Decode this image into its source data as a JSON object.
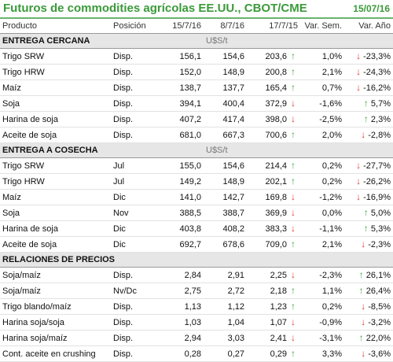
{
  "header": {
    "title": "Futuros de commodities agrícolas EE.UU., CBOT/CME",
    "date": "15/07/16"
  },
  "columns": [
    "Producto",
    "Posición",
    "15/7/16",
    "8/7/16",
    "17/7/15",
    "Var. Sem.",
    "Var. Año"
  ],
  "colors": {
    "title_green": "#3a9a3a",
    "arrow_up": "#3ea43e",
    "arrow_down": "#e0352b",
    "section_bg": "#e6e6e6"
  },
  "sections": [
    {
      "title": "ENTREGA CERCANA",
      "unit": "U$S/t",
      "rows": [
        {
          "product": "Trigo SRW",
          "position": "Disp.",
          "v1": "156,1",
          "v2": "154,6",
          "v3": "203,6",
          "a1": "up",
          "sem": "1,0%",
          "a2": "down",
          "ano": "-23,3%"
        },
        {
          "product": "Trigo HRW",
          "position": "Disp.",
          "v1": "152,0",
          "v2": "148,9",
          "v3": "200,8",
          "a1": "up",
          "sem": "2,1%",
          "a2": "down",
          "ano": "-24,3%"
        },
        {
          "product": "Maíz",
          "position": "Disp.",
          "v1": "138,7",
          "v2": "137,7",
          "v3": "165,4",
          "a1": "up",
          "sem": "0,7%",
          "a2": "down",
          "ano": "-16,2%"
        },
        {
          "product": "Soja",
          "position": "Disp.",
          "v1": "394,1",
          "v2": "400,4",
          "v3": "372,9",
          "a1": "down",
          "sem": "-1,6%",
          "a2": "up",
          "ano": "5,7%"
        },
        {
          "product": "Harina de soja",
          "position": "Disp.",
          "v1": "407,2",
          "v2": "417,4",
          "v3": "398,0",
          "a1": "down",
          "sem": "-2,5%",
          "a2": "up",
          "ano": "2,3%"
        },
        {
          "product": "Aceite de soja",
          "position": "Disp.",
          "v1": "681,0",
          "v2": "667,3",
          "v3": "700,6",
          "a1": "up",
          "sem": "2,0%",
          "a2": "down",
          "ano": "-2,8%"
        }
      ]
    },
    {
      "title": "ENTREGA A COSECHA",
      "unit": "U$S/t",
      "rows": [
        {
          "product": "Trigo SRW",
          "position": "Jul",
          "v1": "155,0",
          "v2": "154,6",
          "v3": "214,4",
          "a1": "up",
          "sem": "0,2%",
          "a2": "down",
          "ano": "-27,7%"
        },
        {
          "product": "Trigo HRW",
          "position": "Jul",
          "v1": "149,2",
          "v2": "148,9",
          "v3": "202,1",
          "a1": "up",
          "sem": "0,2%",
          "a2": "down",
          "ano": "-26,2%"
        },
        {
          "product": "Maíz",
          "position": "Dic",
          "v1": "141,0",
          "v2": "142,7",
          "v3": "169,8",
          "a1": "down",
          "sem": "-1,2%",
          "a2": "down",
          "ano": "-16,9%"
        },
        {
          "product": "Soja",
          "position": "Nov",
          "v1": "388,5",
          "v2": "388,7",
          "v3": "369,9",
          "a1": "down",
          "sem": "0,0%",
          "a2": "up",
          "ano": "5,0%"
        },
        {
          "product": "Harina de soja",
          "position": "Dic",
          "v1": "403,8",
          "v2": "408,2",
          "v3": "383,3",
          "a1": "down",
          "sem": "-1,1%",
          "a2": "up",
          "ano": "5,3%"
        },
        {
          "product": "Aceite de soja",
          "position": "Dic",
          "v1": "692,7",
          "v2": "678,6",
          "v3": "709,0",
          "a1": "up",
          "sem": "2,1%",
          "a2": "down",
          "ano": "-2,3%"
        }
      ]
    },
    {
      "title": "RELACIONES DE PRECIOS",
      "unit": "",
      "rows": [
        {
          "product": "Soja/maíz",
          "position": "Disp.",
          "v1": "2,84",
          "v2": "2,91",
          "v3": "2,25",
          "a1": "down",
          "sem": "-2,3%",
          "a2": "up",
          "ano": "26,1%"
        },
        {
          "product": "Soja/maíz",
          "position": "Nv/Dc",
          "v1": "2,75",
          "v2": "2,72",
          "v3": "2,18",
          "a1": "up",
          "sem": "1,1%",
          "a2": "up",
          "ano": "26,4%"
        },
        {
          "product": "Trigo blando/maíz",
          "position": "Disp.",
          "v1": "1,13",
          "v2": "1,12",
          "v3": "1,23",
          "a1": "up",
          "sem": "0,2%",
          "a2": "down",
          "ano": "-8,5%"
        },
        {
          "product": "Harina soja/soja",
          "position": "Disp.",
          "v1": "1,03",
          "v2": "1,04",
          "v3": "1,07",
          "a1": "down",
          "sem": "-0,9%",
          "a2": "down",
          "ano": "-3,2%"
        },
        {
          "product": "Harina soja/maíz",
          "position": "Disp.",
          "v1": "2,94",
          "v2": "3,03",
          "v3": "2,41",
          "a1": "down",
          "sem": "-3,1%",
          "a2": "up",
          "ano": "22,0%"
        },
        {
          "product": "Cont. aceite en crushing",
          "position": "Disp.",
          "v1": "0,28",
          "v2": "0,27",
          "v3": "0,29",
          "a1": "up",
          "sem": "3,3%",
          "a2": "down",
          "ano": "-3,6%"
        }
      ]
    }
  ]
}
